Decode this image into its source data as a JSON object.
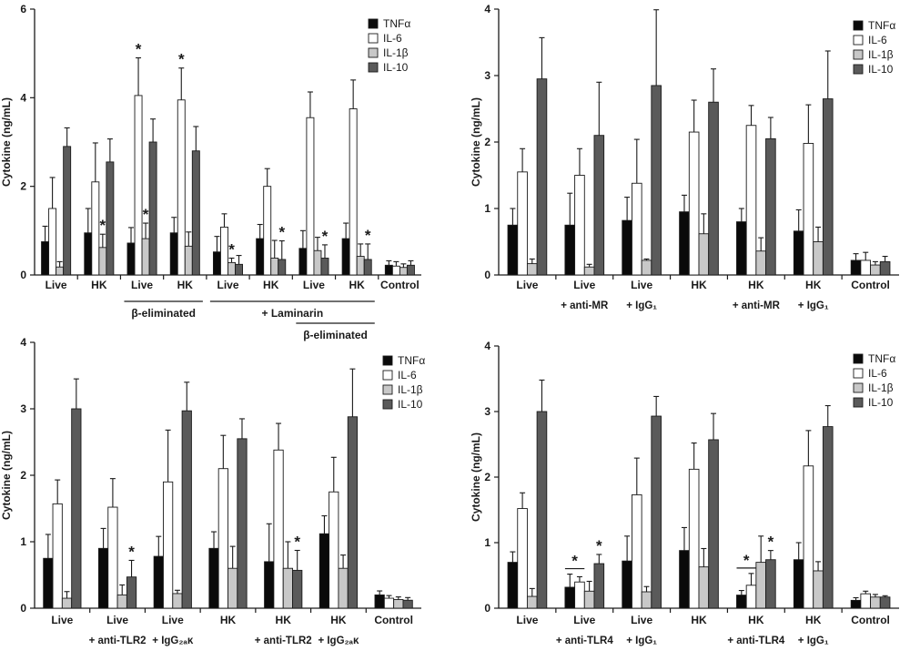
{
  "chart_data": [
    {
      "type": "bar",
      "ylabel": "Cytokine (ng/mL)",
      "ylim": [
        0,
        6
      ],
      "yticks": [
        0,
        2,
        4,
        6
      ],
      "legend": [
        "TNFα",
        "IL-6",
        "IL-1β",
        "IL-10"
      ],
      "categories": [
        "Live",
        "HK",
        "Live",
        "HK",
        "Live",
        "HK",
        "Live",
        "HK",
        "Control"
      ],
      "series": [
        {
          "name": "TNFα",
          "values": [
            0.75,
            0.95,
            0.72,
            0.95,
            0.52,
            0.82,
            0.6,
            0.82,
            0.22
          ],
          "errors": [
            0.35,
            0.55,
            0.35,
            0.35,
            0.35,
            0.32,
            0.4,
            0.35,
            0.1
          ]
        },
        {
          "name": "IL-6",
          "values": [
            1.5,
            2.1,
            4.05,
            3.95,
            1.08,
            2.0,
            3.55,
            3.75,
            0.2
          ],
          "errors": [
            0.7,
            0.88,
            0.85,
            0.72,
            0.3,
            0.4,
            0.58,
            0.65,
            0.1
          ]
        },
        {
          "name": "IL-1β",
          "values": [
            0.18,
            0.62,
            0.82,
            0.65,
            0.28,
            0.38,
            0.55,
            0.42,
            0.17
          ],
          "errors": [
            0.12,
            0.3,
            0.35,
            0.32,
            0.1,
            0.4,
            0.3,
            0.28,
            0.08
          ]
        },
        {
          "name": "IL-10",
          "values": [
            2.9,
            2.55,
            3.0,
            2.8,
            0.24,
            0.35,
            0.38,
            0.35,
            0.22
          ],
          "errors": [
            0.42,
            0.52,
            0.52,
            0.55,
            0.2,
            0.42,
            0.3,
            0.35,
            0.1
          ]
        }
      ],
      "significance": [
        {
          "category": 1,
          "series": 2
        },
        {
          "category": 2,
          "series": 1
        },
        {
          "category": 2,
          "series": 2
        },
        {
          "category": 3,
          "series": 1
        },
        {
          "category": 4,
          "series": 2
        },
        {
          "category": 5,
          "series": 3
        },
        {
          "category": 6,
          "series": 3
        },
        {
          "category": 7,
          "series": 3
        }
      ],
      "group_labels": [
        {
          "text": "β-eliminated",
          "from": 2,
          "to": 3,
          "tier": 1
        },
        {
          "text": "+ Laminarin",
          "from": 4,
          "to": 7,
          "tier": 1
        },
        {
          "text": "β-eliminated",
          "from": 6,
          "to": 7,
          "tier": 2
        }
      ]
    },
    {
      "type": "bar",
      "ylabel": "Cytokine (ng/mL)",
      "ylim": [
        0,
        4
      ],
      "yticks": [
        0,
        1,
        2,
        3,
        4
      ],
      "legend": [
        "TNFα",
        "IL-6",
        "IL-1β",
        "IL-10"
      ],
      "categories": [
        "Live",
        "Live",
        "Live",
        "HK",
        "HK",
        "HK",
        "Control"
      ],
      "sub_labels": [
        "",
        "+ anti-MR",
        "+ IgG₁",
        "",
        "+ anti-MR",
        "+ IgG₁",
        ""
      ],
      "series": [
        {
          "name": "TNFα",
          "values": [
            0.75,
            0.75,
            0.82,
            0.95,
            0.8,
            0.66,
            0.22
          ],
          "errors": [
            0.25,
            0.48,
            0.35,
            0.25,
            0.2,
            0.32,
            0.1
          ]
        },
        {
          "name": "IL-6",
          "values": [
            1.55,
            1.5,
            1.38,
            2.15,
            2.25,
            1.98,
            0.22
          ],
          "errors": [
            0.35,
            0.4,
            0.66,
            0.48,
            0.3,
            0.58,
            0.12
          ]
        },
        {
          "name": "IL-1β",
          "values": [
            0.17,
            0.12,
            0.22,
            0.62,
            0.36,
            0.5,
            0.15
          ],
          "errors": [
            0.07,
            0.04,
            0.02,
            0.3,
            0.2,
            0.22,
            0.05
          ]
        },
        {
          "name": "IL-10",
          "values": [
            2.95,
            2.1,
            2.85,
            2.6,
            2.05,
            2.65,
            0.2
          ],
          "errors": [
            0.62,
            0.8,
            1.14,
            0.5,
            0.32,
            0.72,
            0.08
          ]
        }
      ],
      "significance": [],
      "group_labels": []
    },
    {
      "type": "bar",
      "ylabel": "Cytokine (ng/mL)",
      "ylim": [
        0,
        4
      ],
      "yticks": [
        0,
        1,
        2,
        3,
        4
      ],
      "legend": [
        "TNFα",
        "IL-6",
        "IL-1β",
        "IL-10"
      ],
      "categories": [
        "Live",
        "Live",
        "Live",
        "HK",
        "HK",
        "HK",
        "Control"
      ],
      "sub_labels": [
        "",
        "+ anti-TLR2",
        "+ IgG₂ₐκ",
        "",
        "+ anti-TLR2",
        "+ IgG₂ₐκ",
        ""
      ],
      "series": [
        {
          "name": "TNFα",
          "values": [
            0.75,
            0.9,
            0.78,
            0.9,
            0.7,
            1.12,
            0.2
          ],
          "errors": [
            0.36,
            0.3,
            0.3,
            0.25,
            0.57,
            0.27,
            0.06
          ]
        },
        {
          "name": "IL-6",
          "values": [
            1.57,
            1.52,
            1.9,
            2.1,
            2.38,
            1.75,
            0.15
          ],
          "errors": [
            0.36,
            0.43,
            0.78,
            0.5,
            0.4,
            0.52,
            0.04
          ]
        },
        {
          "name": "IL-1β",
          "values": [
            0.15,
            0.2,
            0.22,
            0.6,
            0.6,
            0.6,
            0.13
          ],
          "errors": [
            0.1,
            0.15,
            0.05,
            0.33,
            0.4,
            0.2,
            0.04
          ]
        },
        {
          "name": "IL-10",
          "values": [
            3.0,
            0.47,
            2.97,
            2.55,
            0.57,
            2.88,
            0.12
          ],
          "errors": [
            0.45,
            0.25,
            0.43,
            0.3,
            0.3,
            0.72,
            0.04
          ]
        }
      ],
      "significance": [
        {
          "category": 1,
          "series": 3
        },
        {
          "category": 4,
          "series": 3
        }
      ],
      "group_labels": []
    },
    {
      "type": "bar",
      "ylabel": "Cytokine (ng/mL)",
      "ylim": [
        0,
        4
      ],
      "yticks": [
        0,
        1,
        2,
        3,
        4
      ],
      "legend": [
        "TNFα",
        "IL-6",
        "IL-1β",
        "IL-10"
      ],
      "categories": [
        "Live",
        "Live",
        "Live",
        "HK",
        "HK",
        "HK",
        "Control"
      ],
      "sub_labels": [
        "",
        "+ anti-TLR4",
        "+ IgG₁",
        "",
        "+ anti-TLR4",
        "+ IgG₁",
        ""
      ],
      "series": [
        {
          "name": "TNFα",
          "values": [
            0.7,
            0.32,
            0.72,
            0.88,
            0.2,
            0.74,
            0.12
          ],
          "errors": [
            0.16,
            0.2,
            0.38,
            0.35,
            0.07,
            0.26,
            0.04
          ]
        },
        {
          "name": "IL-6",
          "values": [
            1.52,
            0.4,
            1.73,
            2.12,
            0.35,
            2.17,
            0.22
          ],
          "errors": [
            0.24,
            0.08,
            0.56,
            0.4,
            0.18,
            0.54,
            0.04
          ]
        },
        {
          "name": "IL-1β",
          "values": [
            0.18,
            0.26,
            0.25,
            0.63,
            0.7,
            0.57,
            0.17
          ],
          "errors": [
            0.12,
            0.15,
            0.08,
            0.28,
            0.4,
            0.14,
            0.04
          ]
        },
        {
          "name": "IL-10",
          "values": [
            3.0,
            0.68,
            2.93,
            2.57,
            0.74,
            2.77,
            0.17
          ],
          "errors": [
            0.48,
            0.14,
            0.3,
            0.4,
            0.14,
            0.32,
            0.02
          ]
        }
      ],
      "significance": [
        {
          "category": 1,
          "series": 3
        },
        {
          "category": 4,
          "series": 3
        }
      ],
      "significance_brackets": [
        {
          "category": 1,
          "from_series": 0,
          "to_series": 1
        },
        {
          "category": 4,
          "from_series": 0,
          "to_series": 1
        }
      ],
      "group_labels": []
    }
  ],
  "styles": {
    "series_fill": [
      "#0a0a0a",
      "#ffffff",
      "#c8c8c8",
      "#5a5a5a"
    ],
    "bar_stroke": "#1a1a1a",
    "axis_color": "#1a1a1a"
  },
  "significance_marker": "*"
}
